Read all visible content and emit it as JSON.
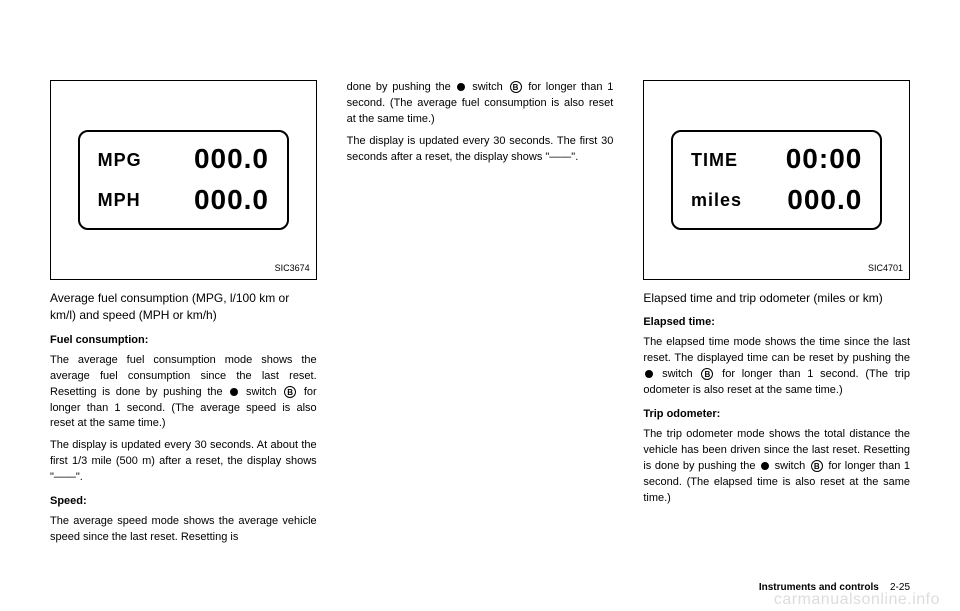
{
  "col1": {
    "display": {
      "row1_label": "MPG",
      "row1_value": "000.0",
      "row2_label": "MPH",
      "row2_value": "000.0",
      "img_id": "SIC3674"
    },
    "section_title": "Average fuel consumption (MPG, l/100 km or km/l) and speed (MPH or km/h)",
    "sub1_heading": "Fuel consumption:",
    "sub1_p1a": "The average fuel consumption mode shows the average fuel consumption since the last reset. Resetting is done by pushing the ",
    "sub1_p1b": " switch ",
    "sub1_p1c": " for longer than 1 second. (The average speed is also reset at the same time.)",
    "sub1_p2": "The display is updated every 30 seconds. At about the first 1/3 mile (500 m) after a reset, the display shows \"——\".",
    "sub2_heading": "Speed:",
    "sub2_p1": "The average speed mode shows the average vehicle speed since the last reset. Resetting is"
  },
  "col2": {
    "p1a": "done by pushing the ",
    "p1b": " switch ",
    "p1c": " for longer than 1 second. (The average fuel consumption is also reset at the same time.)",
    "p2": "The display is updated every 30 seconds. The first 30 seconds after a reset, the display shows \"——\"."
  },
  "col3": {
    "display": {
      "row1_label": "TIME",
      "row1_value": "00:00",
      "row2_label": "miles",
      "row2_value": "000.0",
      "img_id": "SIC4701"
    },
    "section_title": "Elapsed time and trip odometer (miles or km)",
    "sub1_heading": "Elapsed time:",
    "sub1_p1a": "The elapsed time mode shows the time since the last reset. The displayed time can be reset by pushing the ",
    "sub1_p1b": " switch ",
    "sub1_p1c": " for longer than 1 second. (The trip odometer is also reset at the same time.)",
    "sub2_heading": "Trip odometer:",
    "sub2_p1a": "The trip odometer mode shows the total distance the vehicle has been driven since the last reset. Resetting is done by pushing the ",
    "sub2_p1b": " switch ",
    "sub2_p1c": " for longer than 1 second. (The elapsed time is also reset at the same time.)"
  },
  "footer": {
    "label": "Instruments and controls",
    "page": "2-25"
  },
  "watermark": "carmanualsonline.info",
  "circled_b": "B"
}
